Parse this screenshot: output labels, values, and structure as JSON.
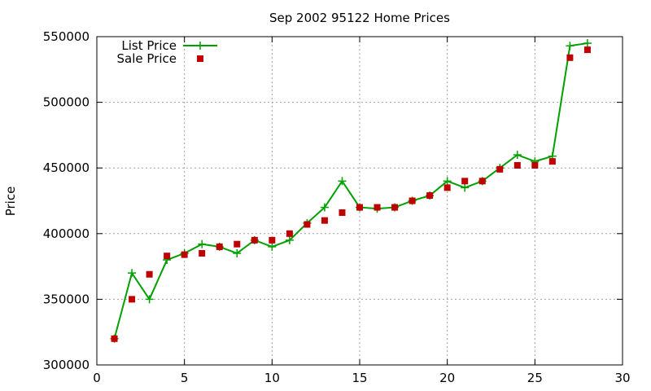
{
  "chart_data": {
    "type": "line",
    "title": "Sep 2002 95122 Home Prices",
    "xlabel": "",
    "ylabel": "Price",
    "xlim": [
      0,
      30
    ],
    "ylim": [
      300000,
      550000
    ],
    "xticks": [
      0,
      5,
      10,
      15,
      20,
      25,
      30
    ],
    "yticks": [
      300000,
      350000,
      400000,
      450000,
      500000,
      550000
    ],
    "grid": true,
    "legend_position": "top-left",
    "series": [
      {
        "name": "List Price",
        "style": "line-with-plus-markers",
        "color": "#00a000",
        "x": [
          1,
          2,
          3,
          4,
          5,
          6,
          7,
          8,
          9,
          10,
          11,
          12,
          13,
          14,
          15,
          16,
          17,
          18,
          19,
          20,
          21,
          22,
          23,
          24,
          25,
          26,
          27,
          28
        ],
        "y": [
          320000,
          370000,
          350000,
          380000,
          385000,
          392000,
          390000,
          385000,
          395000,
          390000,
          395000,
          408000,
          420000,
          440000,
          420000,
          419000,
          420000,
          425000,
          429000,
          440000,
          435000,
          440000,
          450000,
          460000,
          455000,
          459000,
          543000,
          545000
        ]
      },
      {
        "name": "Sale Price",
        "style": "square-markers",
        "color": "#c00000",
        "x": [
          1,
          2,
          3,
          4,
          5,
          6,
          7,
          8,
          9,
          10,
          11,
          12,
          13,
          14,
          15,
          16,
          17,
          18,
          19,
          20,
          21,
          22,
          23,
          24,
          25,
          26,
          27,
          28
        ],
        "y": [
          320000,
          350000,
          369000,
          383000,
          384000,
          385000,
          390000,
          392000,
          395000,
          395000,
          400000,
          407000,
          410000,
          416000,
          420000,
          420000,
          420000,
          425000,
          429000,
          435000,
          440000,
          440000,
          449000,
          452000,
          452000,
          455000,
          534000,
          540000
        ]
      }
    ]
  }
}
